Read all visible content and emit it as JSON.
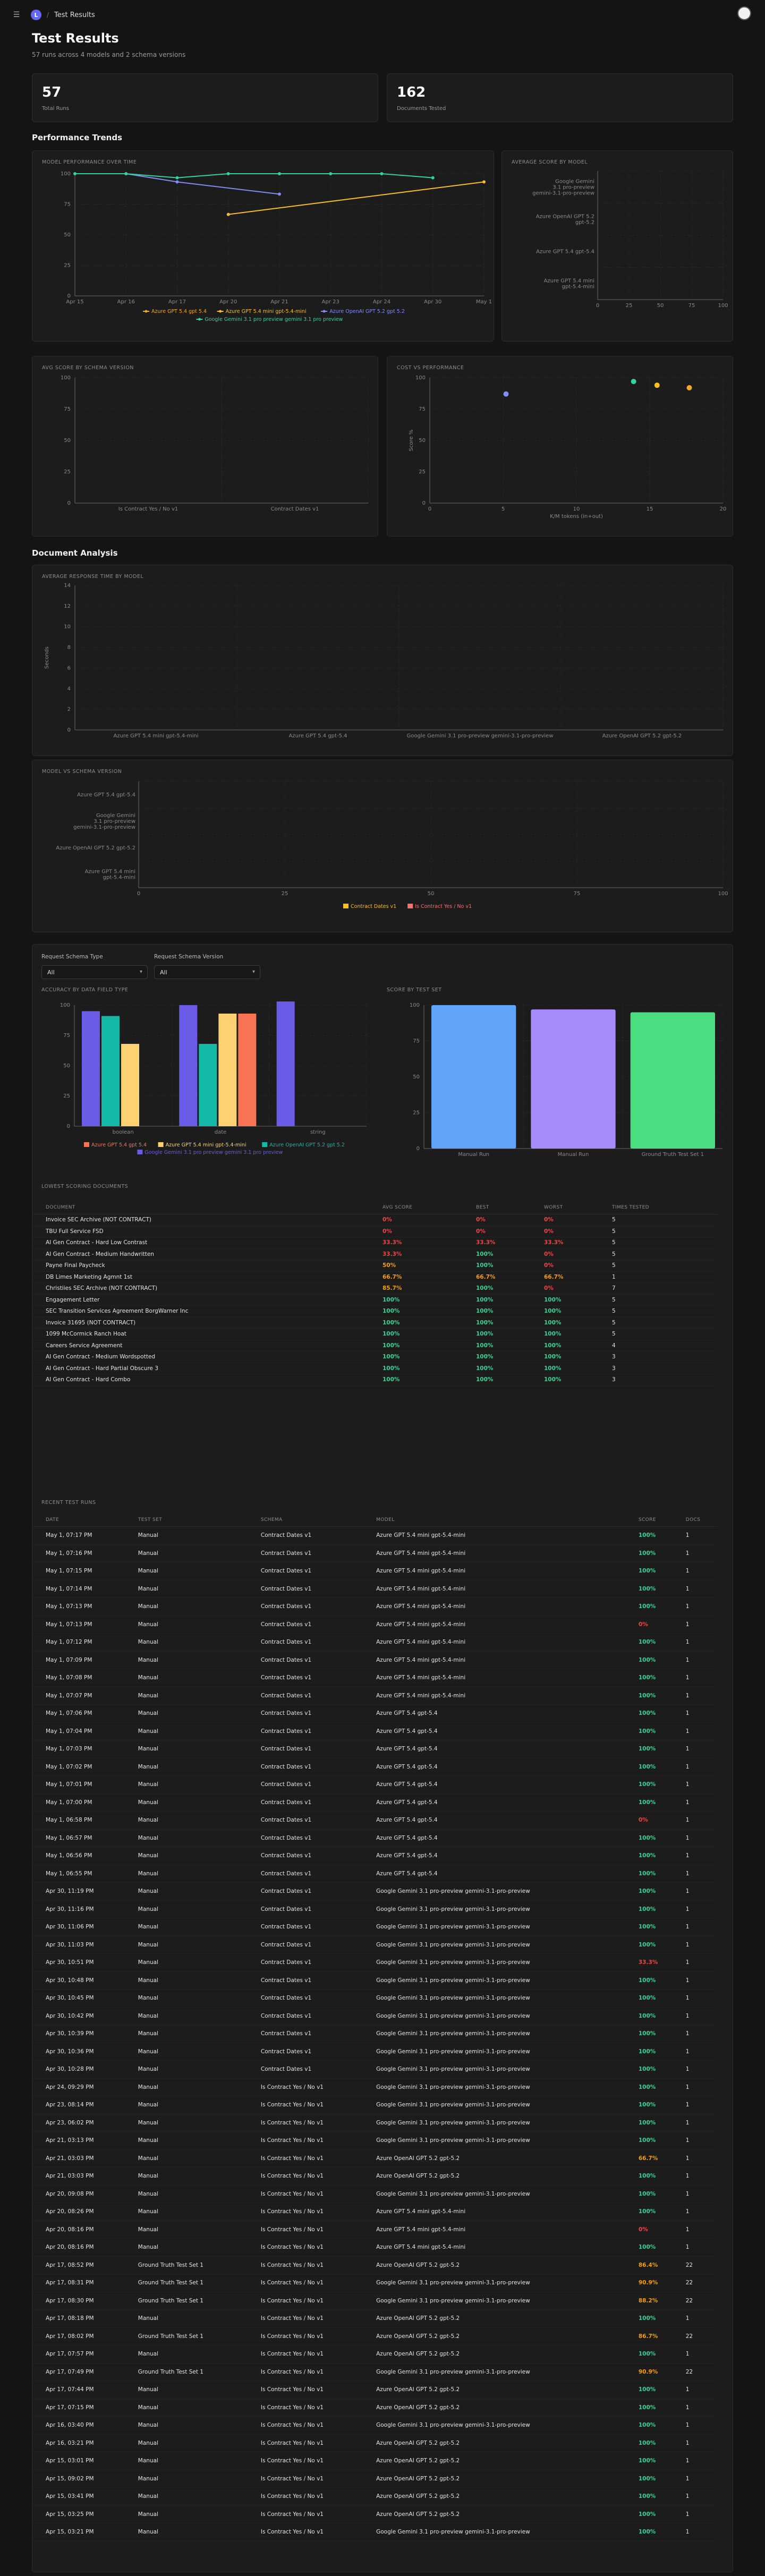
{
  "header": {
    "menu_icon": "menu-icon",
    "logo_letter": "L",
    "separator": "/",
    "breadcrumb": "Test Results"
  },
  "page": {
    "title": "Test Results",
    "subtitle": "57 runs across 4 models and 2 schema versions"
  },
  "stats": [
    {
      "value": "57",
      "label": "Total Runs"
    },
    {
      "value": "162",
      "label": "Documents Tested"
    }
  ],
  "sections": {
    "performance": "Performance Trends",
    "documents": "Document Analysis"
  },
  "colors": {
    "orange": "#f5a623",
    "yellow": "#fbbf24",
    "purple": "#6366f1",
    "teal": "#14b8a6",
    "green": "#34d399",
    "salmon": "#f87171",
    "blue": "#60a5fa",
    "lavender": "#a78bfa",
    "mint": "#4ade80"
  },
  "charts": {
    "over_time": {
      "title": "MODEL PERFORMANCE OVER TIME",
      "x": [
        "Apr 15",
        "Apr 16",
        "Apr 17",
        "Apr 20",
        "Apr 21",
        "Apr 23",
        "Apr 24",
        "Apr 30",
        "May 1"
      ],
      "ylim": [
        0,
        100
      ],
      "yticks": [
        "0",
        "25",
        "50",
        "75",
        "100"
      ],
      "series": [
        {
          "name": "Azure GPT 5.4 gpt 5.4",
          "color": "#f5a623",
          "values": [
            null,
            null,
            null,
            null,
            null,
            null,
            null,
            null,
            null
          ]
        },
        {
          "name": "Azure GPT 5.4 mini gpt-5.4-mini",
          "color": "#fbbf24",
          "values": [
            null,
            null,
            null,
            66.7,
            null,
            null,
            null,
            null,
            93.3
          ]
        },
        {
          "name": "Azure OpenAI GPT 5.2 gpt 5.2",
          "color": "#818cf8",
          "values": [
            null,
            100,
            93.3,
            null,
            83.3,
            null,
            null,
            null,
            null
          ]
        },
        {
          "name": "Google Gemini 3.1 pro preview gemini 3.1 pro preview",
          "color": "#34d399",
          "values": [
            100,
            100,
            96.7,
            100,
            100,
            100,
            100,
            96.7,
            null
          ]
        }
      ]
    },
    "avg_model": {
      "title": "AVERAGE SCORE BY MODEL",
      "categories": [
        "Google Gemini 3.1 pro-preview gemini-3.1-pro-preview",
        "Azure OpenAI GPT 5.2 gpt-5.2",
        "Azure GPT 5.4 gpt-5.4",
        "Azure GPT 5.4 mini gpt-5.4-mini"
      ],
      "values": [
        null,
        null,
        null,
        null
      ],
      "xticks": [
        "0",
        "25",
        "50",
        "75",
        "100"
      ]
    },
    "avg_schema": {
      "title": "AVG SCORE BY SCHEMA VERSION",
      "categories": [
        "Is Contract Yes / No v1",
        "Contract Dates v1"
      ],
      "values": [
        null,
        null
      ],
      "yticks": [
        "0",
        "25",
        "50",
        "75",
        "100"
      ]
    },
    "cost_perf": {
      "title": "COST VS PERFORMANCE",
      "xlabel": "K/M tokens (in+out)",
      "ylabel": "Score %",
      "xticks": [
        "0",
        "5",
        "10",
        "15",
        "20"
      ],
      "yticks": [
        "0",
        "25",
        "50",
        "75",
        "100"
      ],
      "points": [
        {
          "x": 5.2,
          "y": 87,
          "color": "#818cf8"
        },
        {
          "x": 13.9,
          "y": 97,
          "color": "#34d399"
        },
        {
          "x": 15.5,
          "y": 94,
          "color": "#fbbf24"
        },
        {
          "x": 17.7,
          "y": 92,
          "color": "#f5a623"
        }
      ]
    },
    "response_time": {
      "title": "AVERAGE RESPONSE TIME BY MODEL",
      "ylabel": "Seconds",
      "categories": [
        "Azure GPT 5.4 mini gpt-5.4-mini",
        "Azure GPT 5.4 gpt-5.4",
        "Google Gemini 3.1 pro-preview gemini-3.1-pro-preview",
        "Azure OpenAI GPT 5.2 gpt-5.2"
      ],
      "values": [
        null,
        null,
        null,
        null
      ],
      "yticks": [
        "0",
        "2",
        "4",
        "6",
        "8",
        "10",
        "12",
        "14"
      ]
    },
    "model_schema": {
      "title": "MODEL VS SCHEMA VERSION",
      "categories": [
        "Azure GPT 5.4 gpt-5.4",
        "Google Gemini 3.1 pro-preview gemini-3.1-pro-preview",
        "Azure OpenAI GPT 5.2 gpt-5.2",
        "Azure GPT 5.4 mini gpt-5.4-mini"
      ],
      "xticks": [
        "0",
        "25",
        "50",
        "75",
        "100"
      ],
      "series": [
        {
          "name": "Contract Dates v1",
          "color": "#fbbf24"
        },
        {
          "name": "Is Contract Yes / No v1",
          "color": "#f87171"
        }
      ]
    },
    "field_type": {
      "title": "ACCURACY BY DATA FIELD TYPE",
      "categories": [
        "boolean",
        "date",
        "string"
      ],
      "yticks": [
        "0",
        "25",
        "50",
        "75",
        "100"
      ],
      "series": [
        {
          "name": "Azure GPT 5.4 gpt 5.4",
          "color": "#f97355",
          "values": [
            null,
            93,
            null
          ]
        },
        {
          "name": "Azure GPT 5.4 mini gpt-5.4-mini",
          "color": "#fcd172",
          "values": [
            68,
            93,
            null
          ]
        },
        {
          "name": "Azure OpenAI GPT 5.2 gpt 5.2",
          "color": "#14b8a6",
          "values": [
            91,
            68,
            null
          ]
        },
        {
          "name": "Google Gemini 3.1 pro preview gemini 3.1 pro preview",
          "color": "#6b5ce7",
          "values": [
            95,
            100,
            103
          ]
        }
      ]
    },
    "test_set": {
      "title": "SCORE BY TEST SET",
      "categories": [
        "Manual Run",
        "Manual Run",
        "Ground Truth Test Set 1"
      ],
      "values": [
        100,
        97,
        95
      ],
      "colors": [
        "#60a5fa",
        "#a78bfa",
        "#4ade80"
      ],
      "yticks": [
        "0",
        "25",
        "50",
        "75",
        "100"
      ]
    }
  },
  "filters": [
    {
      "label": "Request Schema Type",
      "value": "All"
    },
    {
      "label": "Request Schema Version",
      "value": "All"
    }
  ],
  "lowest": {
    "title": "LOWEST SCORING DOCUMENTS",
    "headers": [
      "Document",
      "Avg Score",
      "Best",
      "Worst",
      "Times Tested"
    ],
    "rows": [
      [
        "Invoice SEC Archive (NOT CONTRACT)",
        "0%",
        "0%",
        "0%",
        "5"
      ],
      [
        "TBU Full Service FSD",
        "0%",
        "0%",
        "0%",
        "5"
      ],
      [
        "AI Gen Contract - Hard Low Contrast",
        "33.3%",
        "33.3%",
        "33.3%",
        "5"
      ],
      [
        "AI Gen Contract - Medium Handwritten",
        "33.3%",
        "100%",
        "0%",
        "5"
      ],
      [
        "Payne Final Paycheck",
        "50%",
        "100%",
        "0%",
        "5"
      ],
      [
        "DB Limes Marketing Agmnt 1st",
        "66.7%",
        "66.7%",
        "66.7%",
        "1"
      ],
      [
        "Christiies SEC Archive (NOT CONTRACT)",
        "85.7%",
        "100%",
        "0%",
        "7"
      ],
      [
        "Engagement Letter",
        "100%",
        "100%",
        "100%",
        "5"
      ],
      [
        "SEC Transition Services Agreement BorgWarner Inc",
        "100%",
        "100%",
        "100%",
        "5"
      ],
      [
        "Invoice 31695 (NOT CONTRACT)",
        "100%",
        "100%",
        "100%",
        "5"
      ],
      [
        "1099 McCormick Ranch Hoat",
        "100%",
        "100%",
        "100%",
        "5"
      ],
      [
        "Careers Service Agreement",
        "100%",
        "100%",
        "100%",
        "4"
      ],
      [
        "AI Gen Contract - Medium Wordspotted",
        "100%",
        "100%",
        "100%",
        "3"
      ],
      [
        "AI Gen Contract - Hard Partial Obscure 3",
        "100%",
        "100%",
        "100%",
        "3"
      ],
      [
        "AI Gen Contract - Hard Combo",
        "100%",
        "100%",
        "100%",
        "3"
      ]
    ]
  },
  "recent": {
    "title": "RECENT TEST RUNS",
    "headers": [
      "Date",
      "Test Set",
      "Schema",
      "Model",
      "Score",
      "Docs"
    ],
    "rows": [
      [
        "May 1, 07:17 PM",
        "Manual",
        "Contract Dates v1",
        "Azure GPT 5.4 mini gpt-5.4-mini",
        "100%",
        "1"
      ],
      [
        "May 1, 07:16 PM",
        "Manual",
        "Contract Dates v1",
        "Azure GPT 5.4 mini gpt-5.4-mini",
        "100%",
        "1"
      ],
      [
        "May 1, 07:15 PM",
        "Manual",
        "Contract Dates v1",
        "Azure GPT 5.4 mini gpt-5.4-mini",
        "100%",
        "1"
      ],
      [
        "May 1, 07:14 PM",
        "Manual",
        "Contract Dates v1",
        "Azure GPT 5.4 mini gpt-5.4-mini",
        "100%",
        "1"
      ],
      [
        "May 1, 07:13 PM",
        "Manual",
        "Contract Dates v1",
        "Azure GPT 5.4 mini gpt-5.4-mini",
        "100%",
        "1"
      ],
      [
        "May 1, 07:13 PM",
        "Manual",
        "Contract Dates v1",
        "Azure GPT 5.4 mini gpt-5.4-mini",
        "0%",
        "1"
      ],
      [
        "May 1, 07:12 PM",
        "Manual",
        "Contract Dates v1",
        "Azure GPT 5.4 mini gpt-5.4-mini",
        "100%",
        "1"
      ],
      [
        "May 1, 07:09 PM",
        "Manual",
        "Contract Dates v1",
        "Azure GPT 5.4 mini gpt-5.4-mini",
        "100%",
        "1"
      ],
      [
        "May 1, 07:08 PM",
        "Manual",
        "Contract Dates v1",
        "Azure GPT 5.4 mini gpt-5.4-mini",
        "100%",
        "1"
      ],
      [
        "May 1, 07:07 PM",
        "Manual",
        "Contract Dates v1",
        "Azure GPT 5.4 mini gpt-5.4-mini",
        "100%",
        "1"
      ],
      [
        "May 1, 07:06 PM",
        "Manual",
        "Contract Dates v1",
        "Azure GPT 5.4 gpt-5.4",
        "100%",
        "1"
      ],
      [
        "May 1, 07:04 PM",
        "Manual",
        "Contract Dates v1",
        "Azure GPT 5.4 gpt-5.4",
        "100%",
        "1"
      ],
      [
        "May 1, 07:03 PM",
        "Manual",
        "Contract Dates v1",
        "Azure GPT 5.4 gpt-5.4",
        "100%",
        "1"
      ],
      [
        "May 1, 07:02 PM",
        "Manual",
        "Contract Dates v1",
        "Azure GPT 5.4 gpt-5.4",
        "100%",
        "1"
      ],
      [
        "May 1, 07:01 PM",
        "Manual",
        "Contract Dates v1",
        "Azure GPT 5.4 gpt-5.4",
        "100%",
        "1"
      ],
      [
        "May 1, 07:00 PM",
        "Manual",
        "Contract Dates v1",
        "Azure GPT 5.4 gpt-5.4",
        "100%",
        "1"
      ],
      [
        "May 1, 06:58 PM",
        "Manual",
        "Contract Dates v1",
        "Azure GPT 5.4 gpt-5.4",
        "0%",
        "1"
      ],
      [
        "May 1, 06:57 PM",
        "Manual",
        "Contract Dates v1",
        "Azure GPT 5.4 gpt-5.4",
        "100%",
        "1"
      ],
      [
        "May 1, 06:56 PM",
        "Manual",
        "Contract Dates v1",
        "Azure GPT 5.4 gpt-5.4",
        "100%",
        "1"
      ],
      [
        "May 1, 06:55 PM",
        "Manual",
        "Contract Dates v1",
        "Azure GPT 5.4 gpt-5.4",
        "100%",
        "1"
      ],
      [
        "Apr 30, 11:19 PM",
        "Manual",
        "Contract Dates v1",
        "Google Gemini 3.1 pro-preview gemini-3.1-pro-preview",
        "100%",
        "1"
      ],
      [
        "Apr 30, 11:16 PM",
        "Manual",
        "Contract Dates v1",
        "Google Gemini 3.1 pro-preview gemini-3.1-pro-preview",
        "100%",
        "1"
      ],
      [
        "Apr 30, 11:06 PM",
        "Manual",
        "Contract Dates v1",
        "Google Gemini 3.1 pro-preview gemini-3.1-pro-preview",
        "100%",
        "1"
      ],
      [
        "Apr 30, 11:03 PM",
        "Manual",
        "Contract Dates v1",
        "Google Gemini 3.1 pro-preview gemini-3.1-pro-preview",
        "100%",
        "1"
      ],
      [
        "Apr 30, 10:51 PM",
        "Manual",
        "Contract Dates v1",
        "Google Gemini 3.1 pro-preview gemini-3.1-pro-preview",
        "33.3%",
        "1"
      ],
      [
        "Apr 30, 10:48 PM",
        "Manual",
        "Contract Dates v1",
        "Google Gemini 3.1 pro-preview gemini-3.1-pro-preview",
        "100%",
        "1"
      ],
      [
        "Apr 30, 10:45 PM",
        "Manual",
        "Contract Dates v1",
        "Google Gemini 3.1 pro-preview gemini-3.1-pro-preview",
        "100%",
        "1"
      ],
      [
        "Apr 30, 10:42 PM",
        "Manual",
        "Contract Dates v1",
        "Google Gemini 3.1 pro-preview gemini-3.1-pro-preview",
        "100%",
        "1"
      ],
      [
        "Apr 30, 10:39 PM",
        "Manual",
        "Contract Dates v1",
        "Google Gemini 3.1 pro-preview gemini-3.1-pro-preview",
        "100%",
        "1"
      ],
      [
        "Apr 30, 10:36 PM",
        "Manual",
        "Contract Dates v1",
        "Google Gemini 3.1 pro-preview gemini-3.1-pro-preview",
        "100%",
        "1"
      ],
      [
        "Apr 30, 10:28 PM",
        "Manual",
        "Contract Dates v1",
        "Google Gemini 3.1 pro-preview gemini-3.1-pro-preview",
        "100%",
        "1"
      ],
      [
        "Apr 24, 09:29 PM",
        "Manual",
        "Is Contract Yes / No v1",
        "Google Gemini 3.1 pro-preview gemini-3.1-pro-preview",
        "100%",
        "1"
      ],
      [
        "Apr 23, 08:14 PM",
        "Manual",
        "Is Contract Yes / No v1",
        "Google Gemini 3.1 pro-preview gemini-3.1-pro-preview",
        "100%",
        "1"
      ],
      [
        "Apr 23, 06:02 PM",
        "Manual",
        "Is Contract Yes / No v1",
        "Google Gemini 3.1 pro-preview gemini-3.1-pro-preview",
        "100%",
        "1"
      ],
      [
        "Apr 21, 03:13 PM",
        "Manual",
        "Is Contract Yes / No v1",
        "Google Gemini 3.1 pro-preview gemini-3.1-pro-preview",
        "100%",
        "1"
      ],
      [
        "Apr 21, 03:03 PM",
        "Manual",
        "Is Contract Yes / No v1",
        "Azure OpenAI GPT 5.2 gpt-5.2",
        "66.7%",
        "1"
      ],
      [
        "Apr 21, 03:03 PM",
        "Manual",
        "Is Contract Yes / No v1",
        "Azure OpenAI GPT 5.2 gpt-5.2",
        "100%",
        "1"
      ],
      [
        "Apr 20, 09:08 PM",
        "Manual",
        "Is Contract Yes / No v1",
        "Google Gemini 3.1 pro-preview gemini-3.1-pro-preview",
        "100%",
        "1"
      ],
      [
        "Apr 20, 08:26 PM",
        "Manual",
        "Is Contract Yes / No v1",
        "Azure GPT 5.4 mini gpt-5.4-mini",
        "100%",
        "1"
      ],
      [
        "Apr 20, 08:16 PM",
        "Manual",
        "Is Contract Yes / No v1",
        "Azure GPT 5.4 mini gpt-5.4-mini",
        "0%",
        "1"
      ],
      [
        "Apr 20, 08:16 PM",
        "Manual",
        "Is Contract Yes / No v1",
        "Azure GPT 5.4 mini gpt-5.4-mini",
        "100%",
        "1"
      ],
      [
        "Apr 17, 08:52 PM",
        "Ground Truth Test Set 1",
        "Is Contract Yes / No v1",
        "Azure OpenAI GPT 5.2 gpt-5.2",
        "86.4%",
        "22"
      ],
      [
        "Apr 17, 08:31 PM",
        "Ground Truth Test Set 1",
        "Is Contract Yes / No v1",
        "Google Gemini 3.1 pro-preview gemini-3.1-pro-preview",
        "90.9%",
        "22"
      ],
      [
        "Apr 17, 08:30 PM",
        "Ground Truth Test Set 1",
        "Is Contract Yes / No v1",
        "Google Gemini 3.1 pro-preview gemini-3.1-pro-preview",
        "88.2%",
        "22"
      ],
      [
        "Apr 17, 08:18 PM",
        "Manual",
        "Is Contract Yes / No v1",
        "Azure OpenAI GPT 5.2 gpt-5.2",
        "100%",
        "1"
      ],
      [
        "Apr 17, 08:02 PM",
        "Ground Truth Test Set 1",
        "Is Contract Yes / No v1",
        "Azure OpenAI GPT 5.2 gpt-5.2",
        "86.7%",
        "22"
      ],
      [
        "Apr 17, 07:57 PM",
        "Manual",
        "Is Contract Yes / No v1",
        "Azure OpenAI GPT 5.2 gpt-5.2",
        "100%",
        "1"
      ],
      [
        "Apr 17, 07:49 PM",
        "Ground Truth Test Set 1",
        "Is Contract Yes / No v1",
        "Google Gemini 3.1 pro-preview gemini-3.1-pro-preview",
        "90.9%",
        "22"
      ],
      [
        "Apr 17, 07:44 PM",
        "Manual",
        "Is Contract Yes / No v1",
        "Azure OpenAI GPT 5.2 gpt-5.2",
        "100%",
        "1"
      ],
      [
        "Apr 17, 07:15 PM",
        "Manual",
        "Is Contract Yes / No v1",
        "Azure OpenAI GPT 5.2 gpt-5.2",
        "100%",
        "1"
      ],
      [
        "Apr 16, 03:40 PM",
        "Manual",
        "Is Contract Yes / No v1",
        "Google Gemini 3.1 pro-preview gemini-3.1-pro-preview",
        "100%",
        "1"
      ],
      [
        "Apr 16, 03:21 PM",
        "Manual",
        "Is Contract Yes / No v1",
        "Azure OpenAI GPT 5.2 gpt-5.2",
        "100%",
        "1"
      ],
      [
        "Apr 15, 03:01 PM",
        "Manual",
        "Is Contract Yes / No v1",
        "Azure OpenAI GPT 5.2 gpt-5.2",
        "100%",
        "1"
      ],
      [
        "Apr 15, 09:02 PM",
        "Manual",
        "Is Contract Yes / No v1",
        "Azure OpenAI GPT 5.2 gpt-5.2",
        "100%",
        "1"
      ],
      [
        "Apr 15, 03:41 PM",
        "Manual",
        "Is Contract Yes / No v1",
        "Azure OpenAI GPT 5.2 gpt-5.2",
        "100%",
        "1"
      ],
      [
        "Apr 15, 03:25 PM",
        "Manual",
        "Is Contract Yes / No v1",
        "Azure OpenAI GPT 5.2 gpt-5.2",
        "100%",
        "1"
      ],
      [
        "Apr 15, 03:21 PM",
        "Manual",
        "Is Contract Yes / No v1",
        "Google Gemini 3.1 pro-preview gemini-3.1-pro-preview",
        "100%",
        "1"
      ]
    ]
  }
}
